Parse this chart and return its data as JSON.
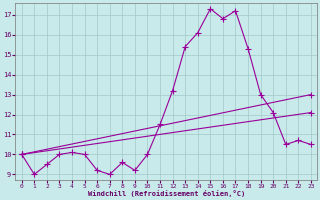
{
  "xlabel": "Windchill (Refroidissement éolien,°C)",
  "bg_color": "#c8eaea",
  "line_color": "#990099",
  "xlim": [
    -0.5,
    23.5
  ],
  "ylim": [
    8.7,
    17.6
  ],
  "xticks": [
    0,
    1,
    2,
    3,
    4,
    5,
    6,
    7,
    8,
    9,
    10,
    11,
    12,
    13,
    14,
    15,
    16,
    17,
    18,
    19,
    20,
    21,
    22,
    23
  ],
  "yticks": [
    9,
    10,
    11,
    12,
    13,
    14,
    15,
    16,
    17
  ],
  "curve1_x": [
    0,
    1,
    2,
    3,
    4,
    5,
    6,
    7,
    8,
    9,
    10,
    11,
    12,
    13,
    14,
    15,
    16,
    17,
    18,
    19,
    20,
    21,
    22,
    23
  ],
  "curve1_y": [
    10.0,
    9.0,
    9.5,
    10.0,
    10.1,
    10.0,
    9.2,
    9.0,
    9.6,
    9.2,
    10.0,
    11.5,
    13.2,
    15.4,
    16.1,
    17.3,
    16.8,
    17.2,
    15.3,
    13.0,
    12.1,
    10.5,
    10.7,
    10.5
  ],
  "curve2_x": [
    0,
    23
  ],
  "curve2_y": [
    10.0,
    13.0
  ],
  "curve3_x": [
    0,
    23
  ],
  "curve3_y": [
    10.0,
    12.1
  ],
  "grid_color": "#a0c8c8",
  "font_color": "#660066",
  "markersize": 2.5,
  "linewidth": 0.8
}
